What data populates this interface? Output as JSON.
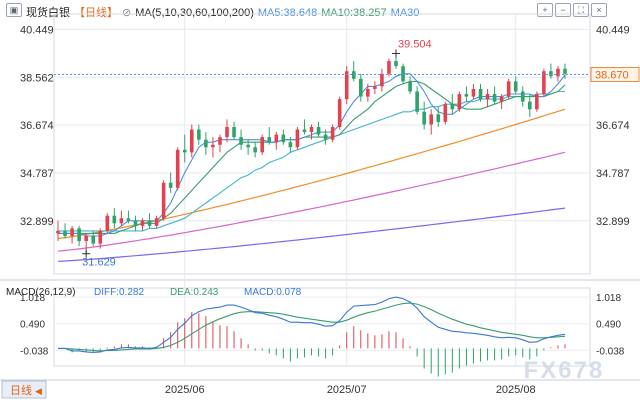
{
  "chart_data": {
    "type": "candlestick",
    "instrument": "现货白银",
    "period": "日线",
    "indicator_label": "MA(5,10,30,60,100,200)",
    "ma_values": [
      {
        "label": "MA5",
        "value": "38.648",
        "color": "#4a90e2"
      },
      {
        "label": "MA10",
        "value": "38.257",
        "color": "#3a9e6e"
      },
      {
        "label": "MA30",
        "value": "",
        "color": "#4a90e2"
      }
    ],
    "current_price": "38.670",
    "price_axis_ticks": [
      "40.449",
      "38.562",
      "36.674",
      "34.787",
      "32.899"
    ],
    "price_range": [
      30.8,
      40.9
    ],
    "high_annotation": "39.504",
    "low_annotation": "31.629",
    "x_labels": [
      "2025/06",
      "2025/07",
      "2025/08"
    ],
    "x_label_positions": [
      18,
      41,
      65
    ],
    "candles": [
      [
        32.4,
        32.9,
        32.1,
        32.5
      ],
      [
        32.5,
        32.8,
        32.2,
        32.3
      ],
      [
        32.3,
        32.7,
        32.0,
        32.6
      ],
      [
        32.6,
        32.7,
        31.9,
        32.1
      ],
      [
        32.1,
        32.4,
        31.6,
        32.3
      ],
      [
        32.3,
        32.5,
        31.9,
        32.0
      ],
      [
        32.0,
        32.6,
        31.8,
        32.5
      ],
      [
        32.5,
        33.2,
        32.4,
        33.1
      ],
      [
        33.1,
        33.4,
        32.6,
        32.8
      ],
      [
        32.8,
        33.3,
        32.7,
        33.0
      ],
      [
        33.0,
        33.3,
        32.8,
        32.9
      ],
      [
        32.9,
        33.1,
        32.5,
        32.7
      ],
      [
        32.7,
        33.0,
        32.5,
        32.9
      ],
      [
        32.9,
        33.2,
        32.6,
        32.7
      ],
      [
        32.7,
        33.1,
        32.6,
        33.0
      ],
      [
        33.0,
        34.5,
        32.9,
        34.4
      ],
      [
        34.4,
        34.8,
        34.0,
        34.2
      ],
      [
        34.2,
        35.8,
        34.1,
        35.7
      ],
      [
        35.7,
        36.3,
        35.2,
        35.6
      ],
      [
        35.6,
        36.7,
        35.4,
        36.5
      ],
      [
        36.5,
        36.7,
        35.9,
        36.1
      ],
      [
        36.1,
        36.4,
        35.5,
        35.8
      ],
      [
        35.8,
        36.2,
        35.4,
        35.9
      ],
      [
        35.9,
        36.3,
        35.6,
        36.2
      ],
      [
        36.2,
        36.9,
        36.0,
        36.6
      ],
      [
        36.6,
        36.8,
        36.1,
        36.2
      ],
      [
        36.2,
        36.5,
        35.7,
        35.9
      ],
      [
        35.9,
        36.1,
        35.5,
        35.8
      ],
      [
        35.8,
        36.0,
        35.4,
        35.6
      ],
      [
        35.6,
        36.3,
        35.5,
        36.2
      ],
      [
        36.2,
        36.6,
        35.9,
        36.0
      ],
      [
        36.0,
        36.4,
        35.7,
        36.3
      ],
      [
        36.3,
        36.5,
        35.9,
        36.0
      ],
      [
        36.0,
        36.2,
        35.6,
        35.8
      ],
      [
        35.8,
        36.6,
        35.7,
        36.5
      ],
      [
        36.5,
        36.9,
        36.3,
        36.4
      ],
      [
        36.4,
        36.7,
        36.1,
        36.6
      ],
      [
        36.6,
        36.8,
        36.2,
        36.3
      ],
      [
        36.3,
        36.5,
        35.9,
        36.1
      ],
      [
        36.1,
        36.7,
        36.0,
        36.6
      ],
      [
        36.6,
        37.8,
        36.5,
        37.7
      ],
      [
        37.7,
        39.0,
        37.5,
        38.8
      ],
      [
        38.8,
        39.2,
        38.4,
        38.5
      ],
      [
        38.5,
        38.7,
        37.6,
        37.8
      ],
      [
        37.8,
        38.3,
        37.6,
        38.1
      ],
      [
        38.1,
        38.4,
        37.9,
        38.2
      ],
      [
        38.2,
        38.9,
        38.0,
        38.7
      ],
      [
        38.7,
        39.3,
        38.6,
        39.2
      ],
      [
        39.2,
        39.5,
        38.9,
        39.0
      ],
      [
        39.0,
        39.1,
        38.3,
        38.4
      ],
      [
        38.4,
        38.6,
        37.9,
        38.0
      ],
      [
        38.0,
        38.2,
        37.1,
        37.2
      ],
      [
        37.2,
        37.6,
        36.5,
        36.7
      ],
      [
        36.7,
        37.3,
        36.3,
        37.1
      ],
      [
        37.1,
        37.4,
        36.6,
        36.8
      ],
      [
        36.8,
        37.6,
        36.7,
        37.5
      ],
      [
        37.5,
        37.9,
        37.1,
        37.3
      ],
      [
        37.3,
        38.0,
        37.2,
        37.9
      ],
      [
        37.9,
        38.2,
        37.6,
        37.8
      ],
      [
        37.8,
        38.3,
        37.7,
        38.1
      ],
      [
        38.1,
        38.3,
        37.6,
        37.7
      ],
      [
        37.7,
        38.1,
        37.4,
        37.9
      ],
      [
        37.9,
        38.2,
        37.5,
        37.6
      ],
      [
        37.6,
        37.9,
        37.3,
        37.8
      ],
      [
        37.8,
        38.5,
        37.7,
        38.4
      ],
      [
        38.4,
        38.6,
        37.9,
        38.0
      ],
      [
        38.0,
        38.2,
        37.4,
        37.6
      ],
      [
        37.6,
        37.9,
        37.0,
        37.3
      ],
      [
        37.3,
        38.0,
        37.2,
        37.9
      ],
      [
        37.9,
        38.9,
        37.8,
        38.8
      ],
      [
        38.8,
        39.1,
        38.5,
        38.6
      ],
      [
        38.6,
        39.0,
        38.4,
        38.9
      ],
      [
        38.9,
        39.1,
        38.5,
        38.7
      ]
    ],
    "ma5": [
      32.4,
      32.4,
      32.4,
      32.4,
      32.3,
      32.3,
      32.3,
      32.4,
      32.5,
      32.7,
      32.9,
      32.9,
      32.9,
      32.9,
      32.9,
      33.2,
      33.6,
      34.2,
      34.8,
      35.3,
      35.8,
      36.0,
      36.0,
      36.1,
      36.1,
      36.1,
      36.1,
      36.1,
      36.1,
      36.1,
      36.0,
      36.0,
      36.1,
      36.1,
      36.1,
      36.2,
      36.3,
      36.4,
      36.4,
      36.4,
      36.7,
      37.2,
      37.6,
      37.9,
      38.2,
      38.2,
      38.3,
      38.4,
      38.6,
      38.7,
      38.7,
      38.4,
      38.0,
      37.5,
      37.2,
      37.1,
      37.1,
      37.3,
      37.5,
      37.7,
      37.8,
      37.8,
      37.8,
      37.8,
      37.9,
      37.9,
      37.9,
      37.9,
      37.8,
      37.8,
      38.0,
      38.3,
      38.65
    ],
    "ma10": [
      32.4,
      32.4,
      32.4,
      32.4,
      32.4,
      32.4,
      32.4,
      32.4,
      32.4,
      32.5,
      32.6,
      32.7,
      32.8,
      32.8,
      32.8,
      33.0,
      33.2,
      33.5,
      33.8,
      34.1,
      34.4,
      34.7,
      35.0,
      35.3,
      35.6,
      35.8,
      36.0,
      36.0,
      36.0,
      36.0,
      36.0,
      36.0,
      36.1,
      36.1,
      36.1,
      36.2,
      36.2,
      36.2,
      36.2,
      36.2,
      36.3,
      36.6,
      36.9,
      37.1,
      37.3,
      37.6,
      37.8,
      38.0,
      38.2,
      38.3,
      38.4,
      38.4,
      38.3,
      38.1,
      37.9,
      37.7,
      37.5,
      37.4,
      37.3,
      37.3,
      37.3,
      37.4,
      37.5,
      37.6,
      37.7,
      37.8,
      37.8,
      37.8,
      37.8,
      37.8,
      37.9,
      38.0,
      38.26
    ],
    "ma30": [
      32.5,
      32.5,
      32.5,
      32.5,
      32.5,
      32.5,
      32.5,
      32.5,
      32.5,
      32.5,
      32.5,
      32.5,
      32.5,
      32.6,
      32.6,
      32.7,
      32.8,
      32.9,
      33.0,
      33.2,
      33.4,
      33.6,
      33.8,
      34.0,
      34.2,
      34.4,
      34.6,
      34.7,
      34.9,
      35.0,
      35.2,
      35.3,
      35.4,
      35.6,
      35.7,
      35.8,
      35.9,
      36.0,
      36.1,
      36.2,
      36.3,
      36.4,
      36.5,
      36.6,
      36.7,
      36.8,
      36.9,
      37.0,
      37.1,
      37.2,
      37.2,
      37.3,
      37.3,
      37.4,
      37.4,
      37.5,
      37.5,
      37.5,
      37.6,
      37.6,
      37.7,
      37.7,
      37.7,
      37.7,
      37.8,
      37.8,
      37.8,
      37.8,
      37.9,
      37.9,
      37.9,
      38.0,
      38.0
    ],
    "ma_long_lines": [
      {
        "color": "#f28c28",
        "start": 32.2,
        "end": 37.3
      },
      {
        "color": "#d966c8",
        "start": 31.7,
        "end": 35.6
      },
      {
        "color": "#7b68ee",
        "start": 31.3,
        "end": 33.4
      }
    ],
    "macd": {
      "label": "MACD(26,12,9)",
      "diff_label": "DIFF:0.282",
      "dea_label": "DEA:0.243",
      "macd_label": "MACD:0.078",
      "axis_ticks": [
        "1.018",
        "0.490",
        "-0.038"
      ],
      "range": [
        -0.35,
        1.2
      ],
      "diff": [
        0.0,
        0.0,
        -0.05,
        -0.05,
        -0.07,
        -0.08,
        -0.07,
        -0.03,
        -0.02,
        0.01,
        0.02,
        0.01,
        0.01,
        0.0,
        0.02,
        0.12,
        0.22,
        0.38,
        0.5,
        0.65,
        0.73,
        0.78,
        0.8,
        0.82,
        0.86,
        0.86,
        0.82,
        0.77,
        0.71,
        0.7,
        0.66,
        0.63,
        0.58,
        0.52,
        0.52,
        0.51,
        0.51,
        0.48,
        0.44,
        0.45,
        0.55,
        0.72,
        0.84,
        0.85,
        0.86,
        0.87,
        0.92,
        0.99,
        1.02,
        0.99,
        0.92,
        0.8,
        0.63,
        0.52,
        0.42,
        0.38,
        0.34,
        0.33,
        0.31,
        0.3,
        0.28,
        0.26,
        0.23,
        0.21,
        0.22,
        0.21,
        0.17,
        0.12,
        0.13,
        0.19,
        0.23,
        0.26,
        0.28
      ],
      "dea": [
        0.0,
        0.0,
        -0.01,
        -0.02,
        -0.03,
        -0.04,
        -0.05,
        -0.04,
        -0.04,
        -0.03,
        -0.02,
        -0.01,
        -0.01,
        -0.01,
        0.0,
        0.02,
        0.06,
        0.12,
        0.2,
        0.29,
        0.38,
        0.46,
        0.53,
        0.59,
        0.64,
        0.69,
        0.72,
        0.73,
        0.73,
        0.72,
        0.71,
        0.7,
        0.68,
        0.65,
        0.62,
        0.6,
        0.58,
        0.56,
        0.54,
        0.52,
        0.52,
        0.56,
        0.62,
        0.67,
        0.71,
        0.74,
        0.78,
        0.82,
        0.86,
        0.89,
        0.9,
        0.88,
        0.83,
        0.77,
        0.7,
        0.64,
        0.58,
        0.53,
        0.48,
        0.45,
        0.41,
        0.38,
        0.35,
        0.32,
        0.3,
        0.28,
        0.26,
        0.23,
        0.21,
        0.21,
        0.22,
        0.23,
        0.24
      ]
    },
    "bottom_label": "日线",
    "watermark": "FX678"
  }
}
